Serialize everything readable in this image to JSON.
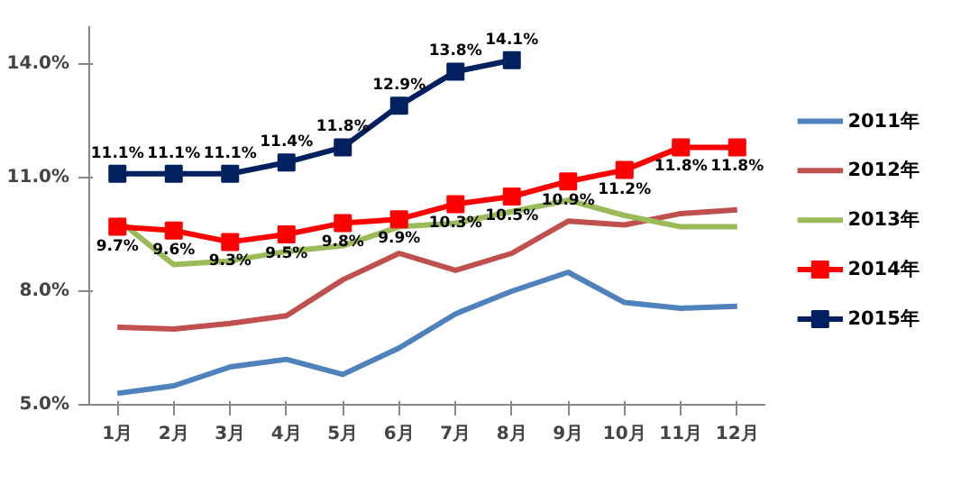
{
  "chart_data": {
    "type": "line",
    "categories": [
      "1月",
      "2月",
      "3月",
      "4月",
      "5月",
      "6月",
      "7月",
      "8月",
      "9月",
      "10月",
      "11月",
      "12月"
    ],
    "ylim": [
      5,
      15
    ],
    "yticks": [
      {
        "value": 5,
        "label": "5.0%"
      },
      {
        "value": 8,
        "label": "8.0%"
      },
      {
        "value": 11,
        "label": "11.0%"
      },
      {
        "value": 14,
        "label": "14.0%"
      }
    ],
    "grid": false,
    "legend": "right",
    "series": [
      {
        "name": "2011年",
        "color": "#4f81bd",
        "marker": "none",
        "values": [
          5.3,
          5.5,
          6.0,
          6.2,
          5.8,
          6.5,
          7.4,
          8.0,
          8.5,
          7.7,
          7.55,
          7.6
        ]
      },
      {
        "name": "2012年",
        "color": "#c0504d",
        "marker": "none",
        "values": [
          7.05,
          7.0,
          7.15,
          7.35,
          8.3,
          9.0,
          8.55,
          9.0,
          9.85,
          9.75,
          10.05,
          10.15
        ]
      },
      {
        "name": "2013年",
        "color": "#9bbb59",
        "marker": "none",
        "values": [
          9.9,
          8.7,
          8.8,
          9.05,
          9.2,
          9.7,
          9.8,
          10.1,
          10.4,
          10.0,
          9.7,
          9.7
        ]
      },
      {
        "name": "2014年",
        "color": "#ff0000",
        "marker": "square",
        "values": [
          9.7,
          9.6,
          9.3,
          9.5,
          9.8,
          9.9,
          10.3,
          10.5,
          10.9,
          11.2,
          11.8,
          11.8
        ],
        "value_labels": [
          "9.7%",
          "9.6%",
          "9.3%",
          "9.5%",
          "9.8%",
          "9.9%",
          "10.3%",
          "10.5%",
          "10.9%",
          "11.2%",
          "11.8%",
          "11.8%"
        ]
      },
      {
        "name": "2015年",
        "color": "#002060",
        "marker": "square",
        "values": [
          11.1,
          11.1,
          11.1,
          11.4,
          11.8,
          12.9,
          13.8,
          14.1,
          null,
          null,
          null,
          null
        ],
        "value_labels": [
          "11.1%",
          "11.1%",
          "11.1%",
          "11.4%",
          "11.8%",
          "12.9%",
          "13.8%",
          "14.1%",
          null,
          null,
          null,
          null
        ]
      }
    ]
  }
}
